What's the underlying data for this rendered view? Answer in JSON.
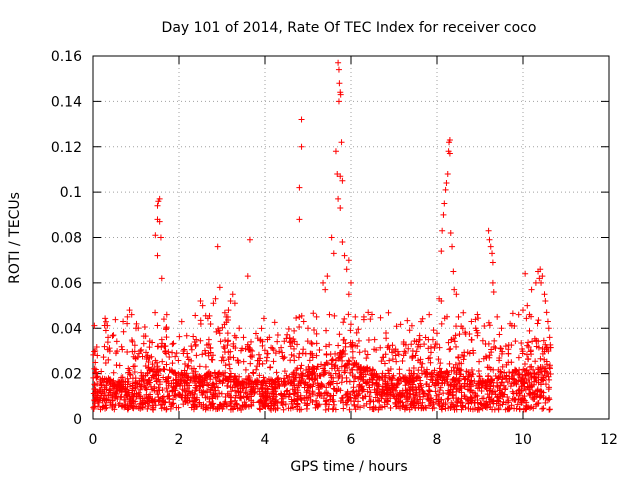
{
  "chart_data": {
    "type": "scatter",
    "title": "Day 101 of 2014, Rate Of TEC Index for receiver coco",
    "xlabel": "GPS time / hours",
    "ylabel": "ROTI / TECUs",
    "xlim": [
      0,
      12
    ],
    "ylim": [
      0,
      0.16
    ],
    "xticks": [
      0,
      2,
      4,
      6,
      8,
      10,
      12
    ],
    "yticks": [
      0,
      0.02,
      0.04,
      0.06,
      0.08,
      0.1,
      0.12,
      0.14,
      0.16
    ],
    "xtick_labels": [
      "0",
      "2",
      "4",
      "6",
      "8",
      "10",
      "12"
    ],
    "ytick_labels": [
      "0",
      "0.02",
      "0.04",
      "0.06",
      "0.08",
      "0.1",
      "0.12",
      "0.14",
      "0.16"
    ],
    "grid": true,
    "marker": "+",
    "color": "#ff0000",
    "series": [
      {
        "name": "coco",
        "points": [
          [
            0.05,
            0.03
          ],
          [
            0.1,
            0.028
          ],
          [
            0.3,
            0.039
          ],
          [
            0.35,
            0.036
          ],
          [
            0.7,
            0.043
          ],
          [
            0.8,
            0.045
          ],
          [
            0.85,
            0.048
          ],
          [
            0.9,
            0.046
          ],
          [
            1.0,
            0.04
          ],
          [
            1.1,
            0.03
          ],
          [
            1.45,
            0.081
          ],
          [
            1.5,
            0.094
          ],
          [
            1.52,
            0.096
          ],
          [
            1.55,
            0.097
          ],
          [
            1.5,
            0.088
          ],
          [
            1.55,
            0.087
          ],
          [
            1.58,
            0.08
          ],
          [
            1.5,
            0.072
          ],
          [
            1.6,
            0.062
          ],
          [
            1.65,
            0.044
          ],
          [
            1.7,
            0.04
          ],
          [
            1.6,
            0.035
          ],
          [
            2.1,
            0.03
          ],
          [
            2.4,
            0.035
          ],
          [
            2.5,
            0.052
          ],
          [
            2.55,
            0.05
          ],
          [
            2.8,
            0.051
          ],
          [
            2.85,
            0.053
          ],
          [
            2.9,
            0.076
          ],
          [
            2.95,
            0.058
          ],
          [
            3.1,
            0.045
          ],
          [
            3.15,
            0.048
          ],
          [
            3.2,
            0.052
          ],
          [
            3.25,
            0.055
          ],
          [
            3.3,
            0.051
          ],
          [
            3.4,
            0.04
          ],
          [
            3.5,
            0.036
          ],
          [
            3.6,
            0.063
          ],
          [
            3.65,
            0.079
          ],
          [
            3.7,
            0.03
          ],
          [
            4.1,
            0.036
          ],
          [
            4.3,
            0.037
          ],
          [
            4.6,
            0.032
          ],
          [
            4.85,
            0.132
          ],
          [
            4.85,
            0.12
          ],
          [
            4.8,
            0.102
          ],
          [
            4.8,
            0.088
          ],
          [
            4.9,
            0.043
          ],
          [
            5.0,
            0.04
          ],
          [
            5.2,
            0.045
          ],
          [
            5.35,
            0.06
          ],
          [
            5.4,
            0.057
          ],
          [
            5.45,
            0.063
          ],
          [
            5.5,
            0.046
          ],
          [
            5.55,
            0.08
          ],
          [
            5.6,
            0.073
          ],
          [
            5.65,
            0.118
          ],
          [
            5.68,
            0.108
          ],
          [
            5.7,
            0.157
          ],
          [
            5.72,
            0.154
          ],
          [
            5.73,
            0.148
          ],
          [
            5.75,
            0.144
          ],
          [
            5.72,
            0.14
          ],
          [
            5.76,
            0.143
          ],
          [
            5.78,
            0.122
          ],
          [
            5.75,
            0.107
          ],
          [
            5.8,
            0.105
          ],
          [
            5.7,
            0.097
          ],
          [
            5.75,
            0.093
          ],
          [
            5.8,
            0.078
          ],
          [
            5.85,
            0.072
          ],
          [
            5.9,
            0.066
          ],
          [
            5.95,
            0.07
          ],
          [
            6.0,
            0.06
          ],
          [
            5.95,
            0.055
          ],
          [
            6.1,
            0.045
          ],
          [
            6.3,
            0.045
          ],
          [
            6.4,
            0.047
          ],
          [
            6.45,
            0.044
          ],
          [
            6.55,
            0.035
          ],
          [
            7.0,
            0.03
          ],
          [
            7.5,
            0.028
          ],
          [
            7.7,
            0.033
          ],
          [
            7.8,
            0.035
          ],
          [
            8.0,
            0.033
          ],
          [
            8.05,
            0.053
          ],
          [
            8.1,
            0.052
          ],
          [
            8.1,
            0.074
          ],
          [
            8.12,
            0.083
          ],
          [
            8.15,
            0.09
          ],
          [
            8.17,
            0.095
          ],
          [
            8.2,
            0.101
          ],
          [
            8.22,
            0.104
          ],
          [
            8.25,
            0.108
          ],
          [
            8.27,
            0.118
          ],
          [
            8.28,
            0.122
          ],
          [
            8.3,
            0.123
          ],
          [
            8.3,
            0.117
          ],
          [
            8.32,
            0.082
          ],
          [
            8.35,
            0.076
          ],
          [
            8.38,
            0.065
          ],
          [
            8.4,
            0.057
          ],
          [
            8.45,
            0.055
          ],
          [
            8.5,
            0.045
          ],
          [
            8.6,
            0.04
          ],
          [
            8.8,
            0.043
          ],
          [
            8.9,
            0.04
          ],
          [
            9.1,
            0.041
          ],
          [
            9.2,
            0.083
          ],
          [
            9.22,
            0.079
          ],
          [
            9.25,
            0.076
          ],
          [
            9.28,
            0.073
          ],
          [
            9.3,
            0.069
          ],
          [
            9.3,
            0.06
          ],
          [
            9.32,
            0.056
          ],
          [
            9.4,
            0.045
          ],
          [
            9.5,
            0.04
          ],
          [
            9.7,
            0.042
          ],
          [
            9.8,
            0.041
          ],
          [
            9.9,
            0.046
          ],
          [
            10.0,
            0.048
          ],
          [
            10.05,
            0.064
          ],
          [
            10.1,
            0.05
          ],
          [
            10.15,
            0.046
          ],
          [
            10.2,
            0.057
          ],
          [
            10.3,
            0.06
          ],
          [
            10.35,
            0.065
          ],
          [
            10.38,
            0.062
          ],
          [
            10.4,
            0.066
          ],
          [
            10.42,
            0.06
          ],
          [
            10.45,
            0.063
          ],
          [
            10.5,
            0.055
          ],
          [
            10.52,
            0.052
          ],
          [
            10.55,
            0.047
          ],
          [
            10.58,
            0.043
          ],
          [
            10.6,
            0.04
          ],
          [
            10.62,
            0.036
          ]
        ],
        "dense_band": {
          "x_start": 0.0,
          "x_end": 10.65,
          "median_y": [
            [
              0.0,
              0.015
            ],
            [
              0.5,
              0.012
            ],
            [
              1.0,
              0.013
            ],
            [
              1.5,
              0.016
            ],
            [
              2.0,
              0.015
            ],
            [
              2.5,
              0.014
            ],
            [
              3.0,
              0.015
            ],
            [
              3.5,
              0.013
            ],
            [
              4.0,
              0.012
            ],
            [
              4.5,
              0.014
            ],
            [
              5.0,
              0.016
            ],
            [
              5.5,
              0.018
            ],
            [
              5.8,
              0.022
            ],
            [
              6.0,
              0.019
            ],
            [
              6.5,
              0.015
            ],
            [
              7.0,
              0.013
            ],
            [
              7.5,
              0.014
            ],
            [
              8.0,
              0.015
            ],
            [
              8.5,
              0.016
            ],
            [
              9.0,
              0.014
            ],
            [
              9.5,
              0.015
            ],
            [
              10.0,
              0.016
            ],
            [
              10.65,
              0.017
            ]
          ],
          "y_min": 0.004,
          "y_max_typical": 0.035
        }
      }
    ]
  }
}
